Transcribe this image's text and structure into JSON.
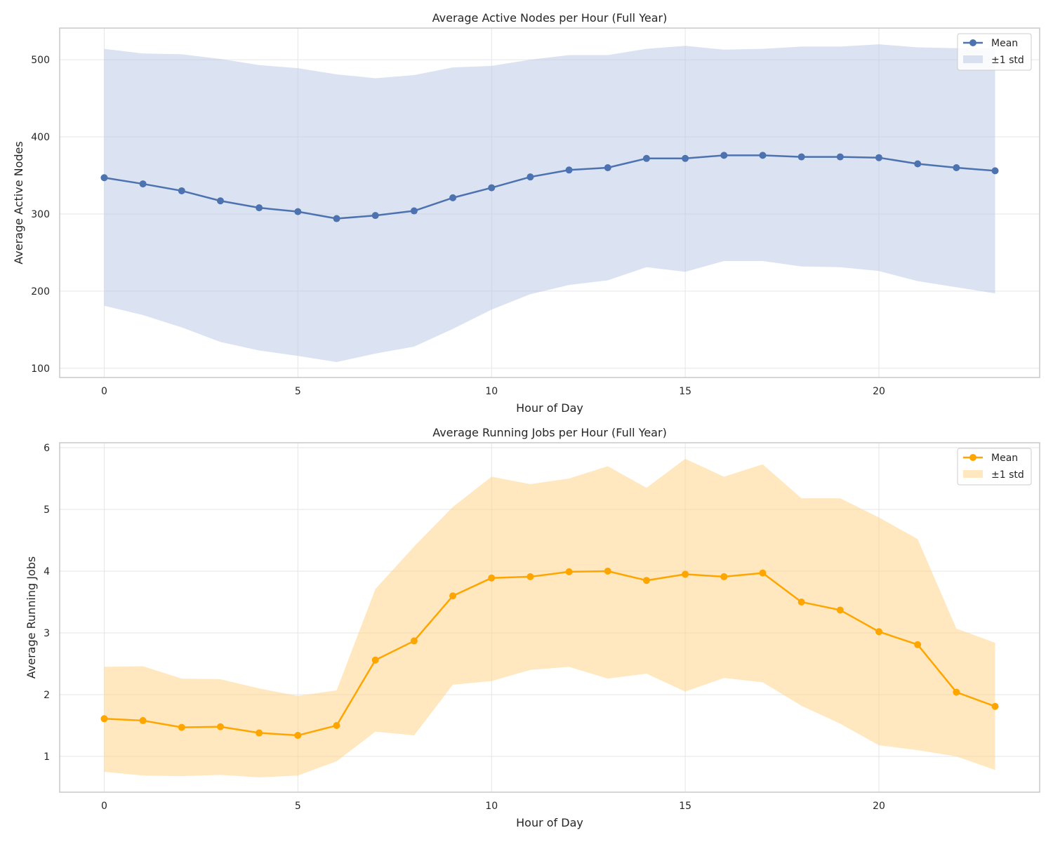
{
  "chart_data": [
    {
      "type": "line",
      "title": "Average Active Nodes per Hour (Full Year)",
      "xlabel": "Hour of Day",
      "ylabel": "Average Active Nodes",
      "xlim": [
        -1.15,
        24.15
      ],
      "ylim": [
        88,
        541
      ],
      "xticks": [
        0,
        5,
        10,
        15,
        20
      ],
      "yticks": [
        100,
        200,
        300,
        400,
        500
      ],
      "grid": true,
      "legend_position": "top-right",
      "color": "#4c72b0",
      "band_color": "#b7c6e3",
      "series": [
        {
          "name": "Mean",
          "x": [
            0,
            1,
            2,
            3,
            4,
            5,
            6,
            7,
            8,
            9,
            10,
            11,
            12,
            13,
            14,
            15,
            16,
            17,
            18,
            19,
            20,
            21,
            22,
            23
          ],
          "values": [
            347,
            339,
            330,
            317,
            308,
            303,
            294,
            298,
            304,
            321,
            334,
            348,
            357,
            360,
            372,
            372,
            376,
            376,
            374,
            374,
            373,
            365,
            360,
            356
          ]
        },
        {
          "name": "±1 std",
          "x": [
            0,
            1,
            2,
            3,
            4,
            5,
            6,
            7,
            8,
            9,
            10,
            11,
            12,
            13,
            14,
            15,
            16,
            17,
            18,
            19,
            20,
            21,
            22,
            23
          ],
          "lower": [
            181,
            169,
            153,
            134,
            123,
            116,
            108,
            119,
            128,
            151,
            176,
            196,
            208,
            214,
            231,
            225,
            239,
            239,
            232,
            231,
            226,
            213,
            205,
            197
          ],
          "upper": [
            514,
            508,
            507,
            501,
            493,
            489,
            481,
            476,
            480,
            490,
            492,
            500,
            506,
            506,
            514,
            518,
            513,
            514,
            517,
            517,
            520,
            516,
            515,
            515
          ]
        }
      ]
    },
    {
      "type": "line",
      "title": "Average Running Jobs per Hour (Full Year)",
      "xlabel": "Hour of Day",
      "ylabel": "Average Running Jobs",
      "xlim": [
        -1.15,
        24.15
      ],
      "ylim": [
        0.42,
        6.08
      ],
      "xticks": [
        0,
        5,
        10,
        15,
        20
      ],
      "yticks": [
        1,
        2,
        3,
        4,
        5,
        6
      ],
      "grid": true,
      "legend_position": "top-right",
      "color": "#ffa500",
      "band_color": "#ffd27f",
      "series": [
        {
          "name": "Mean",
          "x": [
            0,
            1,
            2,
            3,
            4,
            5,
            6,
            7,
            8,
            9,
            10,
            11,
            12,
            13,
            14,
            15,
            16,
            17,
            18,
            19,
            20,
            21,
            22,
            23
          ],
          "values": [
            1.61,
            1.58,
            1.47,
            1.48,
            1.38,
            1.34,
            1.5,
            2.56,
            2.87,
            3.6,
            3.89,
            3.91,
            3.99,
            4.0,
            3.85,
            3.95,
            3.91,
            3.97,
            3.5,
            3.37,
            3.02,
            2.81,
            2.04,
            1.81
          ]
        },
        {
          "name": "±1 std",
          "x": [
            0,
            1,
            2,
            3,
            4,
            5,
            6,
            7,
            8,
            9,
            10,
            11,
            12,
            13,
            14,
            15,
            16,
            17,
            18,
            19,
            20,
            21,
            22,
            23
          ],
          "lower": [
            0.75,
            0.69,
            0.68,
            0.7,
            0.66,
            0.69,
            0.92,
            1.4,
            1.34,
            2.16,
            2.22,
            2.4,
            2.45,
            2.26,
            2.34,
            2.05,
            2.27,
            2.2,
            1.82,
            1.53,
            1.18,
            1.1,
            1.0,
            0.78
          ],
          "upper": [
            2.45,
            2.46,
            2.26,
            2.25,
            2.1,
            1.98,
            2.07,
            3.71,
            4.4,
            5.04,
            5.53,
            5.41,
            5.5,
            5.7,
            5.35,
            5.82,
            5.53,
            5.73,
            5.18,
            5.18,
            4.87,
            4.52,
            3.07,
            2.84
          ]
        }
      ]
    }
  ]
}
